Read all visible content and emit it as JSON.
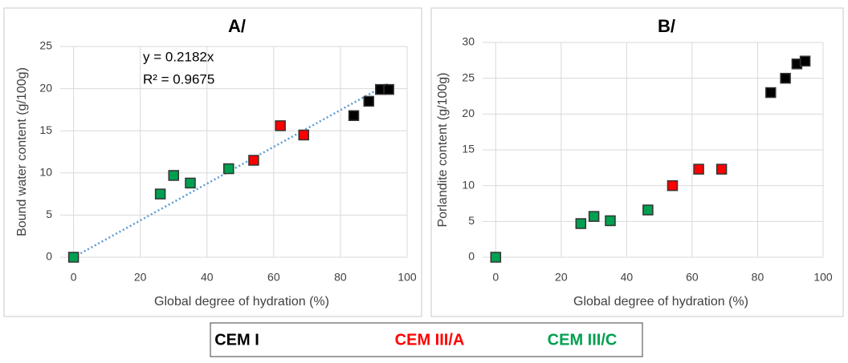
{
  "chart_data": [
    {
      "type": "scatter",
      "title": "A/",
      "x_label": "Global degree of hydration (%)",
      "y_label": "Bound water content (g/100g)",
      "xlim": [
        -4,
        100
      ],
      "ylim": [
        0,
        25
      ],
      "xticks": [
        0,
        20,
        40,
        60,
        80,
        100
      ],
      "yticks": [
        0,
        5,
        10,
        15,
        20,
        25
      ],
      "grid": true,
      "series": [
        {
          "name": "CEM I",
          "color": "#000000",
          "x": [
            84,
            88.5,
            92,
            94.5
          ],
          "values": [
            16.8,
            18.5,
            19.9,
            19.9
          ]
        },
        {
          "name": "CEM III/A",
          "color": "#ff0000",
          "x": [
            54,
            62,
            69
          ],
          "values": [
            11.5,
            15.6,
            14.5
          ]
        },
        {
          "name": "CEM III/C",
          "color": "#00a050",
          "x": [
            0,
            26,
            30,
            35,
            46.5
          ],
          "values": [
            0,
            7.5,
            9.7,
            8.8,
            10.5
          ]
        }
      ],
      "trendline": {
        "slope": 0.2182,
        "color": "#5b9bd5"
      },
      "annotations": [
        "y = 0.2182x",
        "R² = 0.9675"
      ]
    },
    {
      "type": "scatter",
      "title": "B/",
      "x_label": "Global degree of hydration (%)",
      "y_label": "Porlandite content (g/100g)",
      "xlim": [
        -4,
        100
      ],
      "ylim": [
        0,
        30
      ],
      "xticks": [
        0,
        20,
        40,
        60,
        80,
        100
      ],
      "yticks": [
        0,
        5,
        10,
        15,
        20,
        25,
        30
      ],
      "grid": true,
      "series": [
        {
          "color": "#000000",
          "x": [
            84,
            88.5,
            92,
            94.5
          ],
          "values": [
            23,
            25,
            27,
            27.4
          ]
        },
        {
          "color": "#ff0000",
          "x": [
            54,
            62,
            69
          ],
          "values": [
            10,
            12.3,
            12.3
          ]
        },
        {
          "color": "#00a050",
          "x": [
            0,
            26,
            30,
            35,
            46.5
          ],
          "values": [
            0,
            4.7,
            5.7,
            5.1,
            6.6
          ]
        }
      ]
    }
  ]
}
